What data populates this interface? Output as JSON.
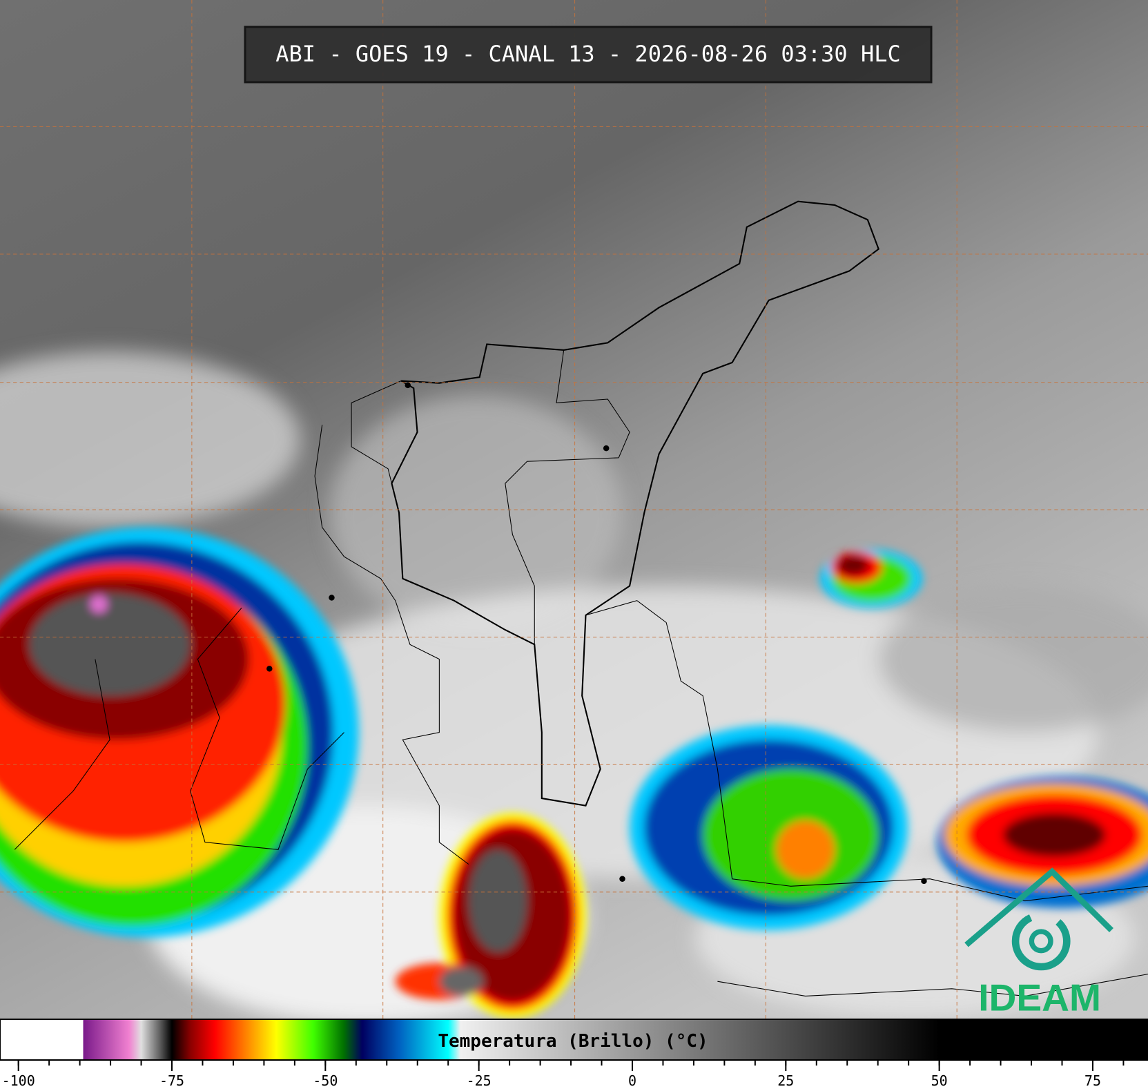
{
  "header": {
    "title": "ABI - GOES 19 - CANAL 13 - 2026-08-26 03:30 HLC"
  },
  "colorbar": {
    "label": "Temperatura (Brillo) (°C)",
    "range": [
      -103,
      84
    ],
    "ticks": [
      -100,
      -75,
      -50,
      -25,
      0,
      25,
      50,
      75
    ],
    "minor_step": 5,
    "colormap": [
      {
        "value": -103,
        "color": "#ffffff"
      },
      {
        "value": -89.5,
        "color": "#ffffff"
      },
      {
        "value": -89.4,
        "color": "#7a1a8a"
      },
      {
        "value": -82,
        "color": "#f080d0"
      },
      {
        "value": -80,
        "color": "#e0e0e0"
      },
      {
        "value": -77,
        "color": "#606060"
      },
      {
        "value": -75,
        "color": "#000000"
      },
      {
        "value": -72,
        "color": "#8a0000"
      },
      {
        "value": -68,
        "color": "#ff0000"
      },
      {
        "value": -62,
        "color": "#ff9a00"
      },
      {
        "value": -58,
        "color": "#ffff00"
      },
      {
        "value": -52,
        "color": "#40ff00"
      },
      {
        "value": -47,
        "color": "#007000"
      },
      {
        "value": -44,
        "color": "#000060"
      },
      {
        "value": -38,
        "color": "#0060c0"
      },
      {
        "value": -30,
        "color": "#00ffff"
      },
      {
        "value": -28,
        "color": "#f0f0f0"
      },
      {
        "value": 50,
        "color": "#000000"
      },
      {
        "value": 84,
        "color": "#000000"
      }
    ]
  },
  "logo": {
    "text": "IDEAM"
  }
}
